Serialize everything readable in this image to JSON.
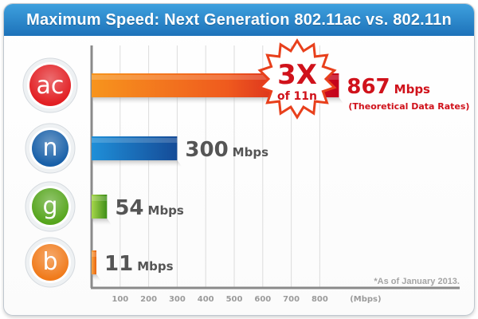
{
  "chart_data": {
    "type": "bar",
    "orientation": "horizontal",
    "title": "Maximum Speed: Next Generation 802.11ac vs. 802.11n",
    "categories": [
      "ac",
      "n",
      "g",
      "b"
    ],
    "values": [
      867,
      300,
      54,
      11
    ],
    "value_labels": [
      {
        "number": "867",
        "unit": "Mbps"
      },
      {
        "number": "300",
        "unit": "Mbps"
      },
      {
        "number": "54",
        "unit": "Mbps"
      },
      {
        "number": "11",
        "unit": "Mbps"
      }
    ],
    "unit": "Mbps",
    "x_ticks": [
      "100",
      "200",
      "300",
      "400",
      "500",
      "600",
      "700",
      "800"
    ],
    "x_unit_label": "(Mbps)",
    "xlim": [
      0,
      900
    ],
    "grid": true,
    "colors": {
      "ac": "#e8201c",
      "n": "#1a5ea8",
      "g": "#59a81e",
      "b": "#ee7a1a"
    },
    "badge_colors": {
      "ac": "#e21e22",
      "n": "#175fa8",
      "g": "#55a51c",
      "b": "#f07a1a"
    },
    "annotation": {
      "main": "3X",
      "sub": "of 11n",
      "note": "(Theoretical Data Rates)"
    },
    "footnote": "*As of January 2013."
  }
}
